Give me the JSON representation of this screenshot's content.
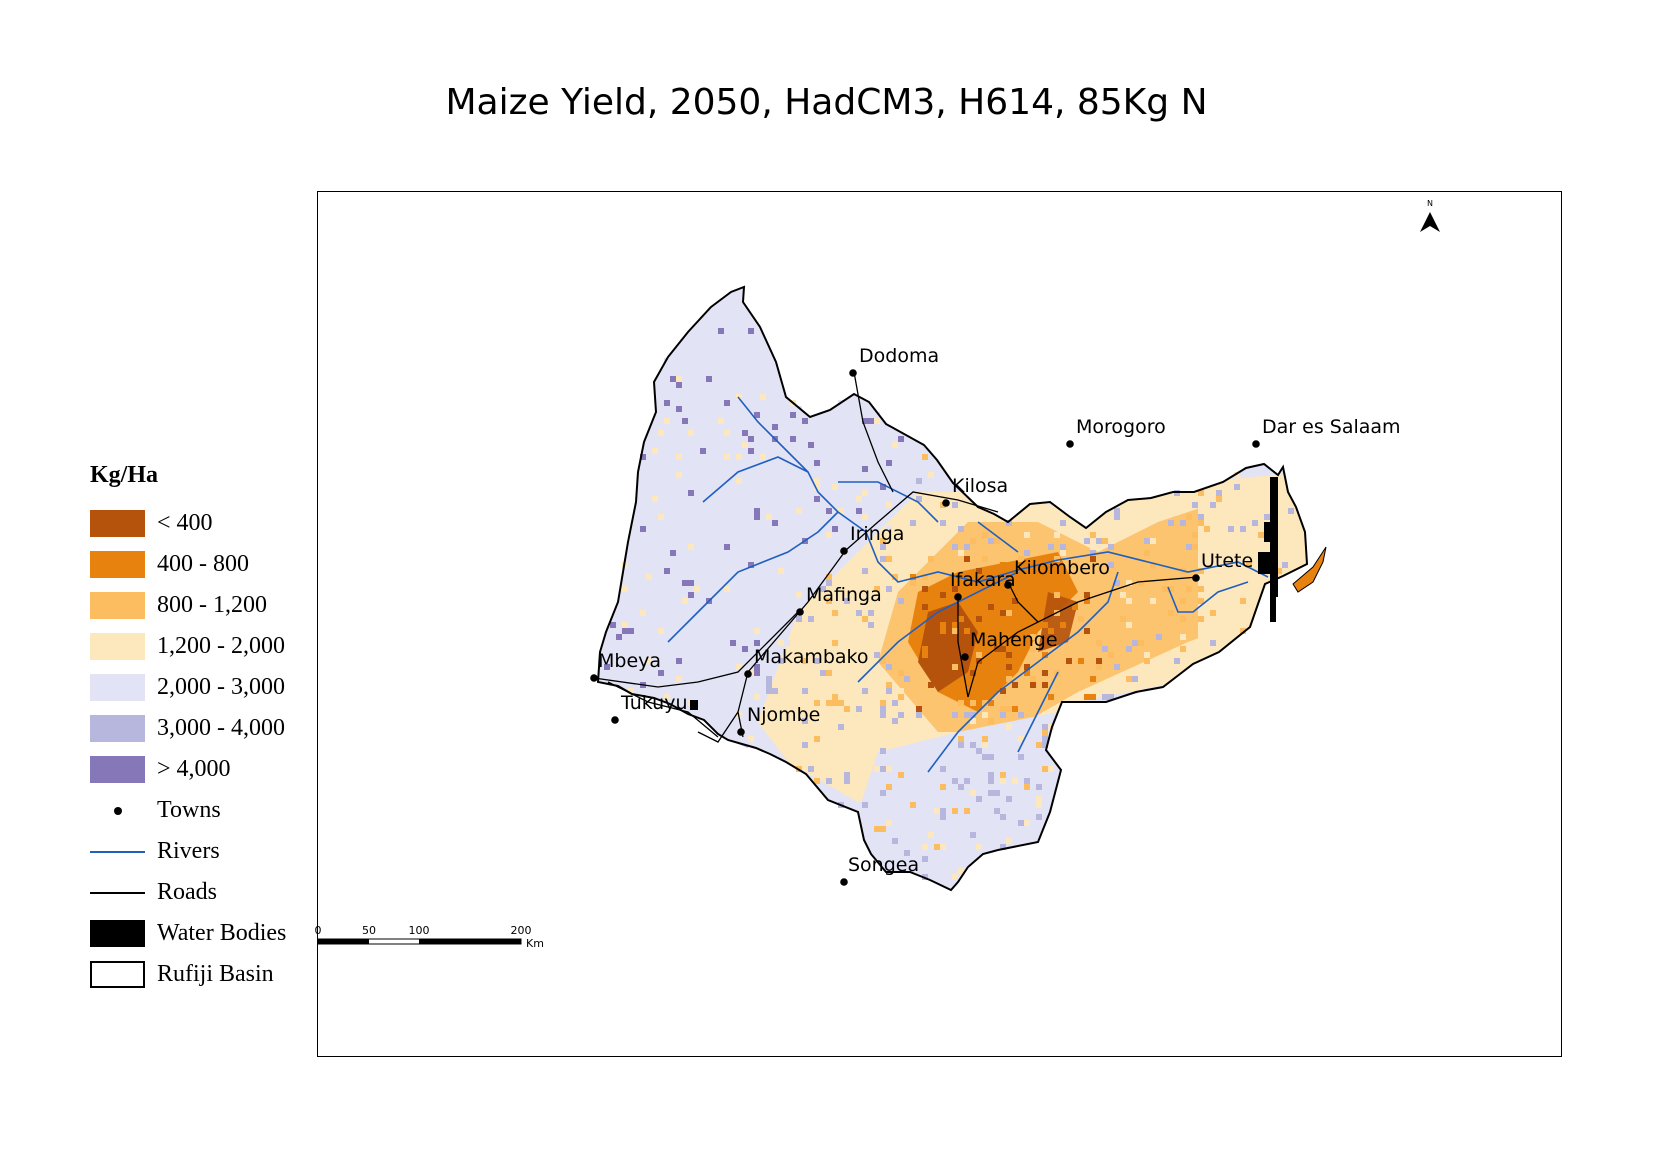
{
  "title": "Maize Yield, 2050, HadCM3, H614, 85Kg N",
  "legend": {
    "heading": "Kg/Ha",
    "classes": [
      {
        "label": "< 400",
        "color": "#b5520c"
      },
      {
        "label": "400 - 800",
        "color": "#e8820f"
      },
      {
        "label": "800 - 1,200",
        "color": "#fbbd60"
      },
      {
        "label": "1,200 - 2,000",
        "color": "#fde8bd"
      },
      {
        "label": "2,000 - 3,000",
        "color": "#e2e3f4"
      },
      {
        "label": "3,000 - 4,000",
        "color": "#b7b6dc"
      },
      {
        "label": "> 4,000",
        "color": "#8677b8"
      }
    ],
    "towns_label": "Towns",
    "rivers_label": "Rivers",
    "rivers_color": "#1f5fbf",
    "roads_label": "Roads",
    "water_label": "Water Bodies",
    "basin_label": "Rufiji Basin"
  },
  "map": {
    "north_letter": "N",
    "towns": [
      {
        "name": "Dodoma"
      },
      {
        "name": "Morogoro"
      },
      {
        "name": "Dar es Salaam"
      },
      {
        "name": "Kilosa"
      },
      {
        "name": "Iringa"
      },
      {
        "name": "Ifakara"
      },
      {
        "name": "Kilombero"
      },
      {
        "name": "Utete"
      },
      {
        "name": "Mafinga"
      },
      {
        "name": "Mahenge"
      },
      {
        "name": "Mbeya"
      },
      {
        "name": "Makambako"
      },
      {
        "name": "Tukuyu"
      },
      {
        "name": "Njombe"
      },
      {
        "name": "Songea"
      }
    ],
    "scale_ticks": [
      "0",
      "50",
      "100",
      "200"
    ],
    "scale_unit": "Km"
  }
}
